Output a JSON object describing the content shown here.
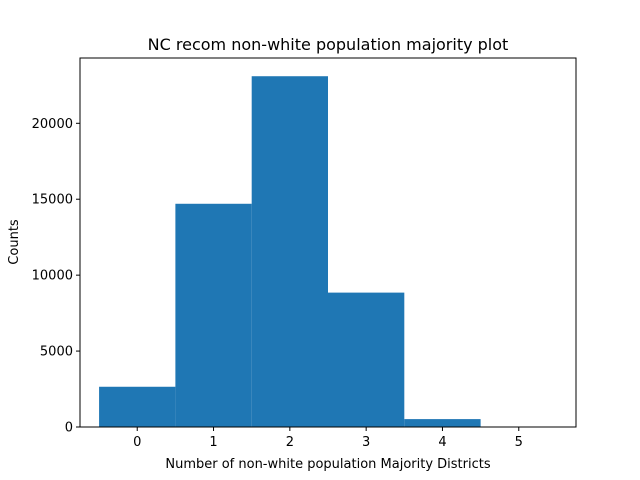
{
  "chart_data": {
    "type": "bar",
    "title": "NC recom non-white population majority plot",
    "xlabel": "Number of non-white population Majority Districts",
    "ylabel": "Counts",
    "bins": [
      {
        "center": 0,
        "count": 2650
      },
      {
        "center": 1,
        "count": 14700
      },
      {
        "center": 2,
        "count": 23100
      },
      {
        "center": 3,
        "count": 8850
      },
      {
        "center": 4,
        "count": 520
      },
      {
        "center": 5,
        "count": 0
      }
    ],
    "bin_width": 1,
    "xlim": [
      -0.75,
      5.75
    ],
    "ylim": [
      0,
      24300
    ],
    "xticks": [
      0,
      1,
      2,
      3,
      4,
      5
    ],
    "yticks": [
      0,
      5000,
      10000,
      15000,
      20000
    ],
    "grid": false,
    "legend": "none",
    "bar_color": "#1f77b4"
  }
}
